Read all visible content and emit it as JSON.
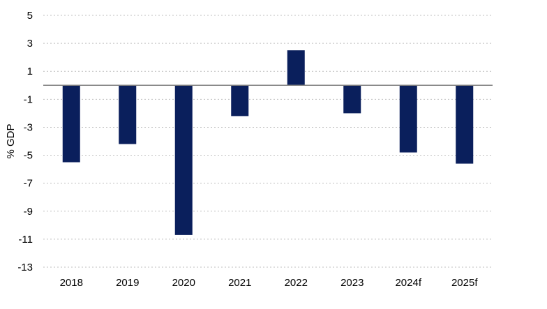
{
  "chart_data": {
    "type": "bar",
    "title": "",
    "xlabel": "",
    "ylabel": "% GDP",
    "categories": [
      "2018",
      "2019",
      "2020",
      "2021",
      "2022",
      "2023",
      "2024f",
      "2025f"
    ],
    "values": [
      -5.5,
      -4.2,
      -10.7,
      -2.2,
      2.5,
      -2.0,
      -4.8,
      -5.6
    ],
    "ylim": [
      -13,
      5
    ],
    "yticks": [
      5,
      3,
      1,
      -1,
      -3,
      -5,
      -7,
      -9,
      -11,
      -13
    ],
    "grid": true,
    "legend": "none",
    "bar_color": "#0a1f5c"
  }
}
